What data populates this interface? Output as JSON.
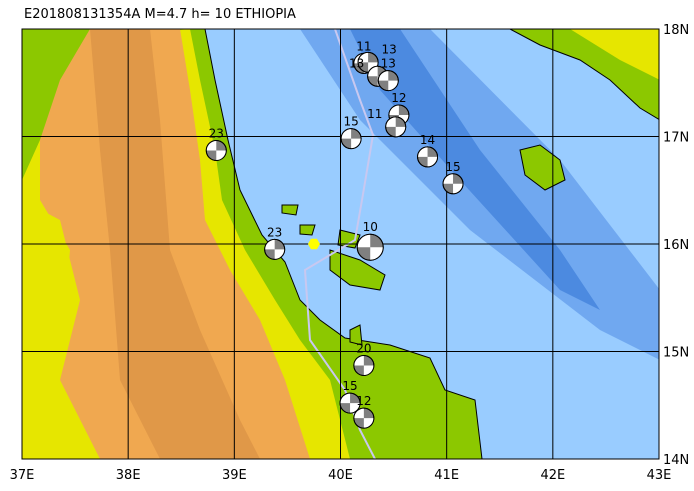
{
  "title": "E201808131354A  M=4.7  h= 10  ETHIOPIA",
  "map": {
    "lon_range": [
      37,
      43
    ],
    "lat_range": [
      14,
      18
    ],
    "lon_labels": [
      "37E",
      "38E",
      "39E",
      "40E",
      "41E",
      "42E",
      "43E"
    ],
    "lat_labels": [
      "18N",
      "17N",
      "16N",
      "15N",
      "14N"
    ],
    "colors": {
      "sea_shallow": "#99ccff",
      "sea_mid": "#70a8f0",
      "sea_deep": "#4c8ae0",
      "lowland": "#8cc800",
      "midland": "#e6e600",
      "highland": "#f0a850",
      "peak": "#e09848",
      "plate_boundary": "#c8c8f0",
      "epicenter": "#ffff00"
    },
    "epicenter": {
      "lon": 39.75,
      "lat": 16.0,
      "icon": "hexagon-epicenter-icon"
    },
    "events": [
      {
        "label": "11",
        "lon": 40.22,
        "lat": 17.68
      },
      {
        "label": "13",
        "lon": 40.26,
        "lat": 17.69
      },
      {
        "label": "13",
        "lon": 40.35,
        "lat": 17.56
      },
      {
        "label": "13",
        "lon": 40.45,
        "lat": 17.52
      },
      {
        "label": "12",
        "lon": 40.55,
        "lat": 17.2
      },
      {
        "label": "11",
        "lon": 40.52,
        "lat": 17.09
      },
      {
        "label": "15",
        "lon": 40.1,
        "lat": 16.98
      },
      {
        "label": "14",
        "lon": 40.82,
        "lat": 16.81
      },
      {
        "label": "15",
        "lon": 41.06,
        "lat": 16.56
      },
      {
        "label": "23",
        "lon": 38.83,
        "lat": 16.87
      },
      {
        "label": "23",
        "lon": 39.38,
        "lat": 15.95
      },
      {
        "label": "10",
        "lon": 40.28,
        "lat": 15.97
      },
      {
        "label": "20",
        "lon": 40.22,
        "lat": 14.87
      },
      {
        "label": "15",
        "lon": 40.09,
        "lat": 14.52
      },
      {
        "label": "12",
        "lon": 40.22,
        "lat": 14.38
      }
    ]
  }
}
